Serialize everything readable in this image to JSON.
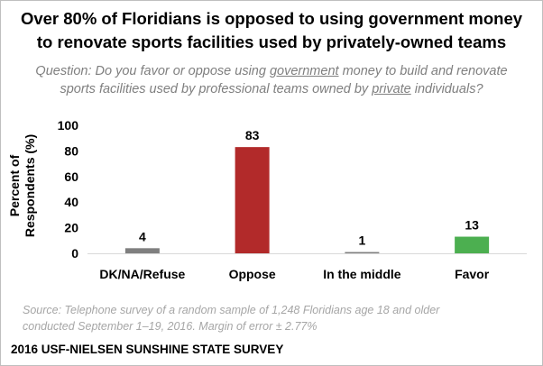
{
  "title_lines": [
    "Over 80% of Floridians is opposed to using government money",
    "to renovate sports facilities used by privately-owned teams"
  ],
  "question": {
    "line1_parts": [
      "Question: Do you favor or oppose using ",
      "government",
      " money to build and renovate"
    ],
    "line2_parts": [
      "sports facilities used by professional teams owned by ",
      "private",
      " individuals?"
    ]
  },
  "chart_data": {
    "type": "bar",
    "categories": [
      "DK/NA/Refuse",
      "Oppose",
      "In the middle",
      "Favor"
    ],
    "values": [
      4,
      83,
      1,
      13
    ],
    "value_labels": [
      "4",
      "83",
      "1",
      "13"
    ],
    "bar_colors": [
      "#7f7f7f",
      "#b22a2a",
      "#7f7f7f",
      "#4caf50"
    ],
    "ylabel_lines": [
      "Percent of",
      "Respondents (%)"
    ],
    "yticks": [
      0,
      20,
      40,
      60,
      80,
      100
    ],
    "ylim": [
      0,
      100
    ],
    "grid": false
  },
  "source_lines": [
    "Source: Telephone survey of a random sample of 1,248 Floridians age 18 and older",
    "conducted September 1–19, 2016. Margin of error ± 2.77%"
  ],
  "footer": "2016 USF-NIELSEN SUNSHINE STATE SURVEY"
}
